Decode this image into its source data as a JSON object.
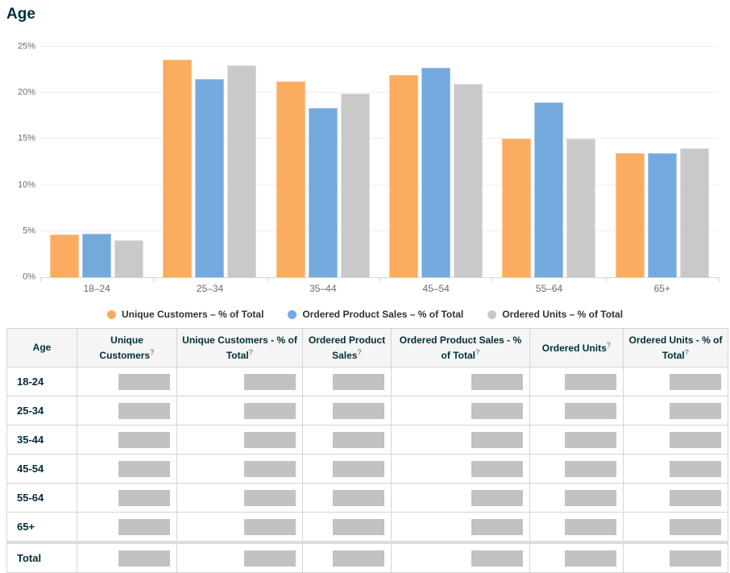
{
  "page": {
    "title": "Age"
  },
  "chart_data": {
    "type": "bar",
    "title": "Age",
    "categories": [
      "18–24",
      "25–34",
      "35–44",
      "45–54",
      "55–64",
      "65+"
    ],
    "series": [
      {
        "name": "Unique Customers – % of Total",
        "color": "#FBAC60",
        "border_color": "#FCC792",
        "values": [
          4.6,
          23.6,
          21.2,
          21.9,
          15.0,
          13.5
        ]
      },
      {
        "name": "Ordered Product Sales – % of Total",
        "color": "#74A9DE",
        "border_color": "#A6C8EC",
        "values": [
          4.7,
          21.5,
          18.4,
          22.7,
          19.0,
          13.5
        ]
      },
      {
        "name": "Ordered Units – % of Total",
        "color": "#C9C9C9",
        "border_color": "#DFDFDF",
        "values": [
          4.0,
          23.0,
          19.9,
          21.0,
          15.0,
          14.0
        ]
      }
    ],
    "ylim": [
      0,
      25
    ],
    "yticks": [
      {
        "value": 0,
        "label": "0%"
      },
      {
        "value": 5,
        "label": "5%"
      },
      {
        "value": 10,
        "label": "10%"
      },
      {
        "value": 15,
        "label": "15%"
      },
      {
        "value": 20,
        "label": "20%"
      },
      {
        "value": 25,
        "label": "25%"
      }
    ],
    "grid": true,
    "legend_position": "bottom"
  },
  "table": {
    "help_symbol": "?",
    "columns": [
      {
        "label": "Age",
        "help": false
      },
      {
        "label": "Unique Customers",
        "help": true
      },
      {
        "label": "Unique Customers - % of Total",
        "help": true
      },
      {
        "label": "Ordered Product Sales",
        "help": true
      },
      {
        "label": "Ordered Product Sales - % of Total",
        "help": true
      },
      {
        "label": "Ordered Units",
        "help": true
      },
      {
        "label": "Ordered Units - % of Total",
        "help": true
      }
    ],
    "rows": [
      {
        "label": "18-24",
        "total": false
      },
      {
        "label": "25-34",
        "total": false
      },
      {
        "label": "35-44",
        "total": false
      },
      {
        "label": "45-54",
        "total": false
      },
      {
        "label": "55-64",
        "total": false
      },
      {
        "label": "65+",
        "total": false
      },
      {
        "label": "Total",
        "total": true
      }
    ],
    "redacted_cells_per_row": 6
  },
  "colors": {
    "title_text": "#002F36",
    "axis_text": "#6B6B6B",
    "gridline": "#EFEFEF",
    "axis_line": "#CCD6EB",
    "table_border": "#D5D5D5",
    "header_bg": "#F5F5F5",
    "redacted_block": "#C2C2C2"
  }
}
